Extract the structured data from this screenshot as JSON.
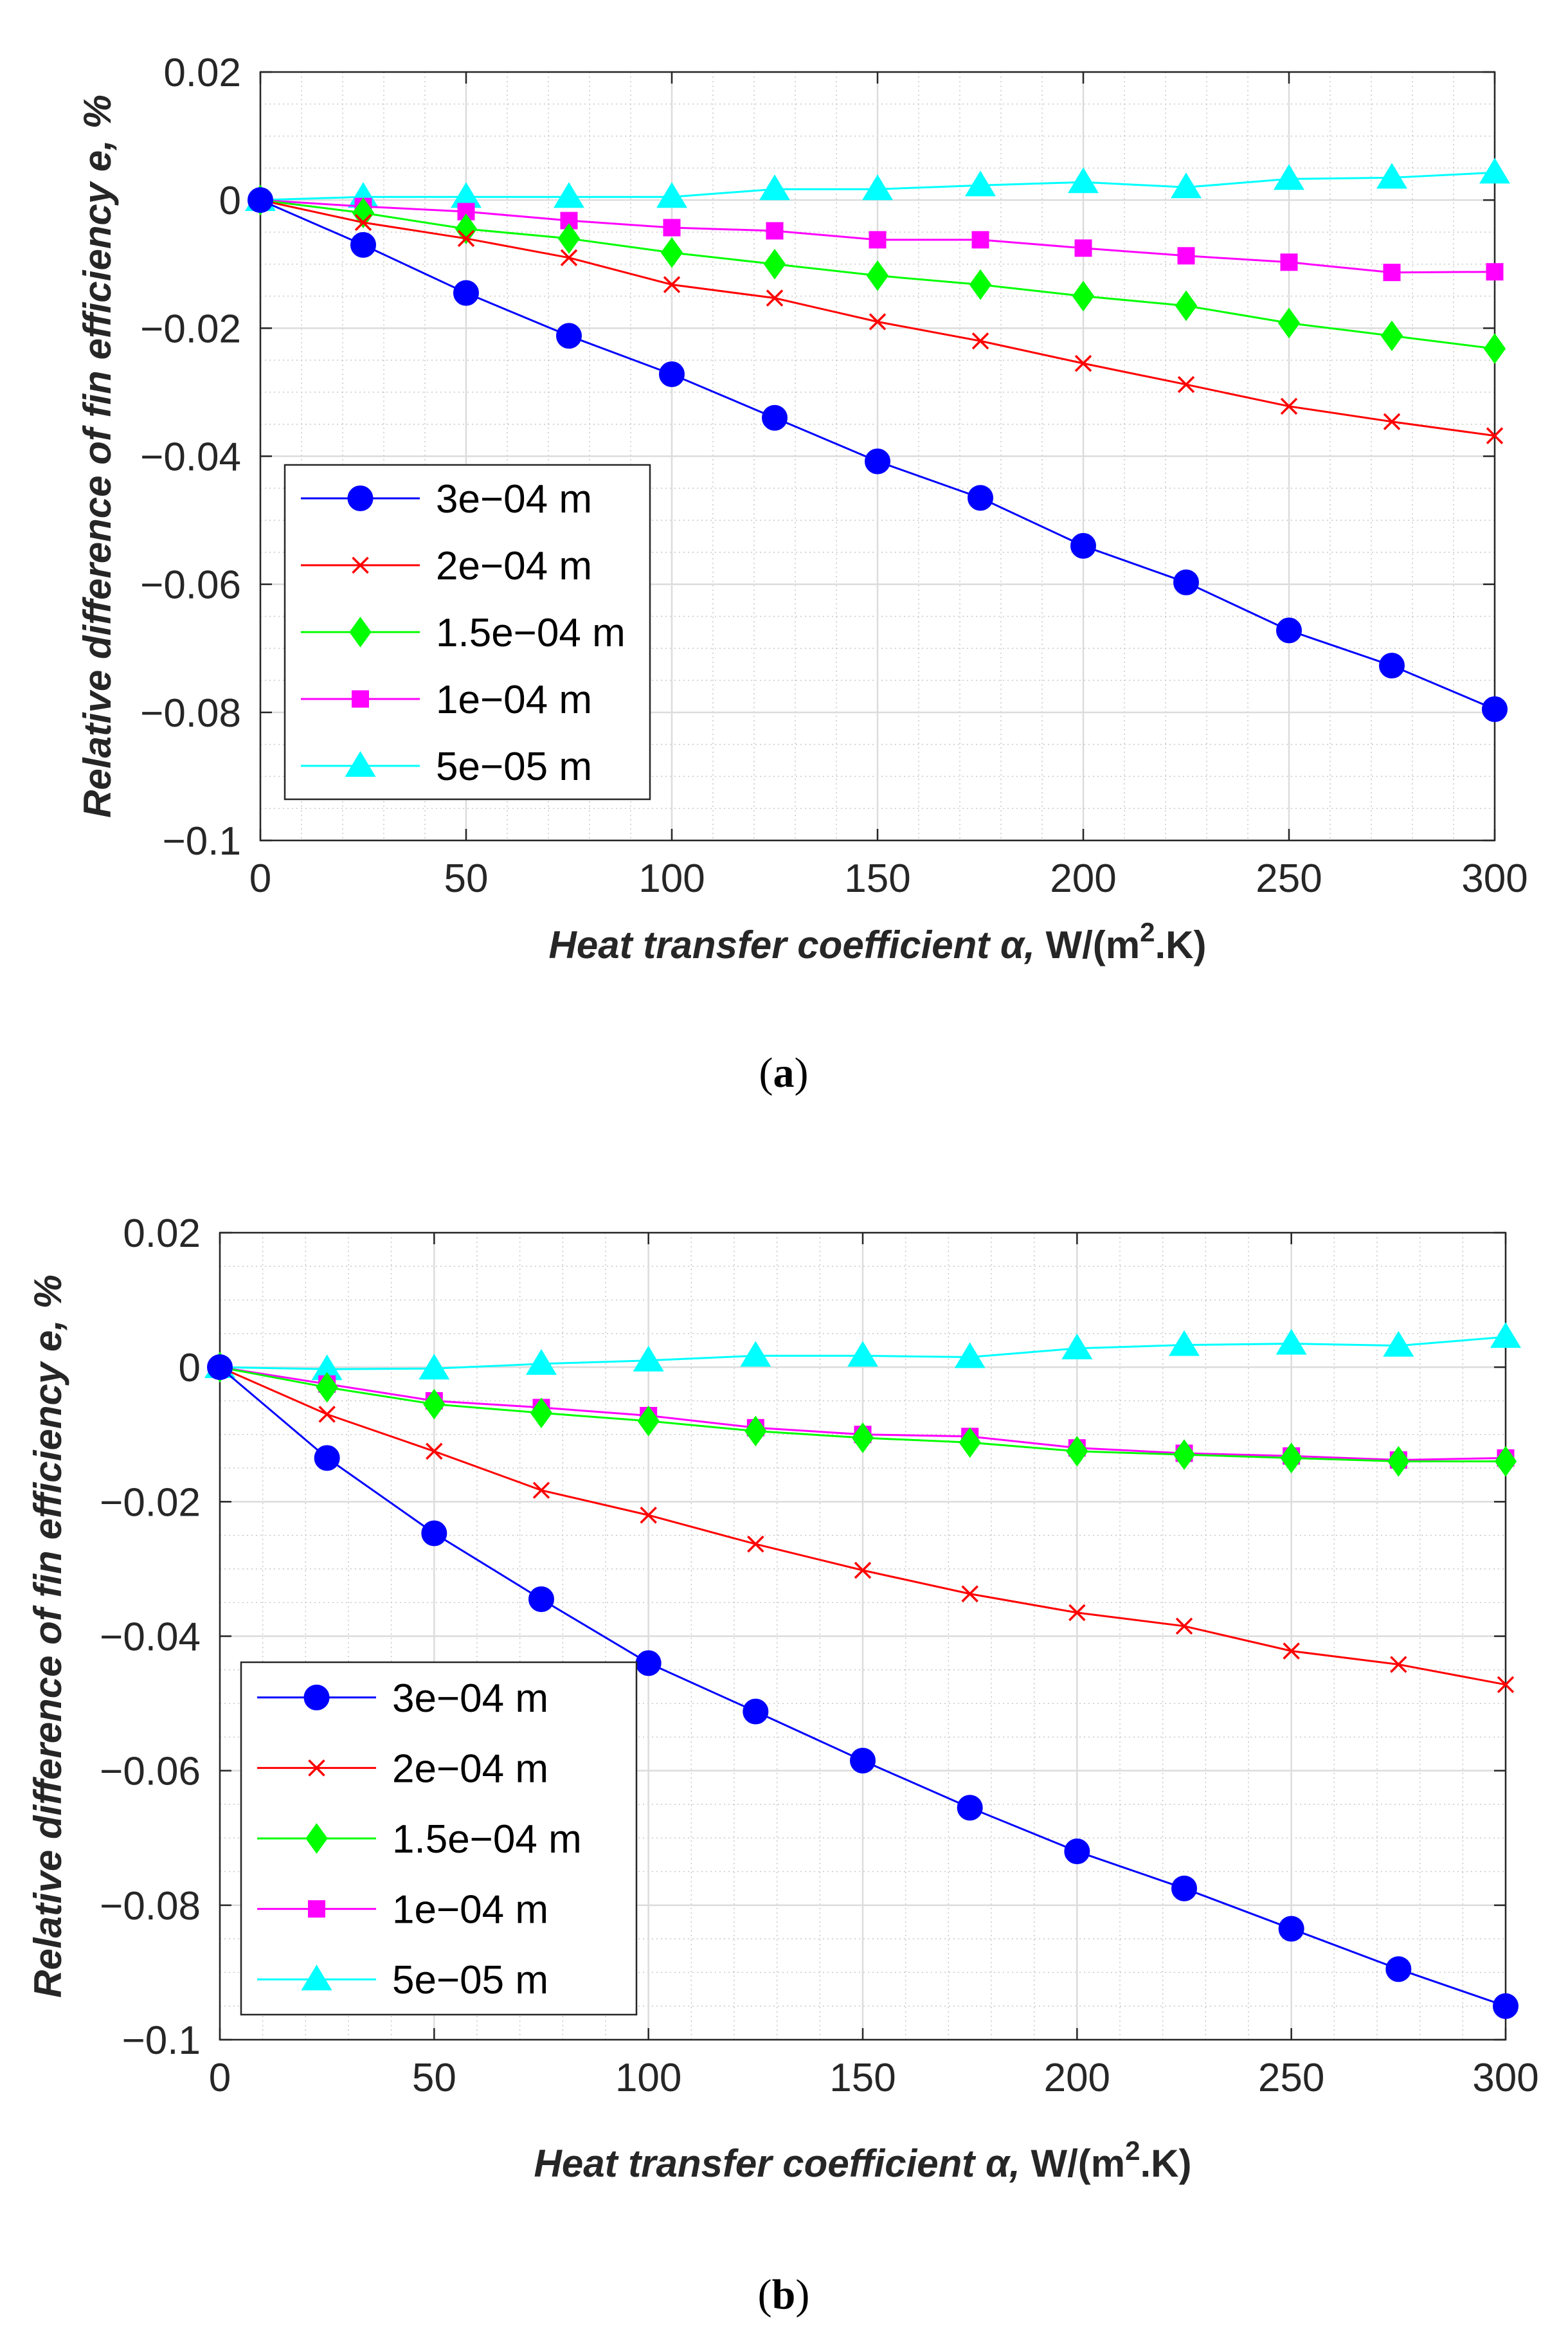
{
  "chart_data": [
    {
      "type": "line",
      "panel_label": "a",
      "xlabel": "Heat transfer coefficient α, W/(m2.K)",
      "xlabel_parts": {
        "main": "Heat transfer coefficient α, ",
        "unit_pre": "W/(m",
        "unit_sup": "2",
        "unit_post": ".K)"
      },
      "ylabel": "Relative difference of fin efficiency e, %",
      "xlim": [
        0,
        300
      ],
      "ylim": [
        -0.1,
        0.02
      ],
      "xticks": [
        0,
        50,
        100,
        150,
        200,
        250,
        300
      ],
      "yticks": [
        0.02,
        0,
        -0.02,
        -0.04,
        -0.06,
        -0.08,
        -0.1
      ],
      "ytick_labels": [
        "0.02",
        "0",
        "−0.02",
        "−0.04",
        "−0.06",
        "−0.08",
        "−0.1"
      ],
      "grid": true,
      "legend_position": "lower-left",
      "x": [
        0,
        25,
        50,
        75,
        100,
        125,
        150,
        175,
        200,
        225,
        250,
        275,
        300
      ],
      "series": [
        {
          "name": "3e−04 m",
          "color": "#0000ff",
          "marker": "circle",
          "values": [
            0,
            -0.007,
            -0.0145,
            -0.0212,
            -0.0272,
            -0.034,
            -0.0408,
            -0.0465,
            -0.054,
            -0.0597,
            -0.0672,
            -0.0727,
            -0.0795
          ]
        },
        {
          "name": "2e−04 m",
          "color": "#ff0000",
          "marker": "x",
          "values": [
            0,
            -0.0035,
            -0.006,
            -0.009,
            -0.0132,
            -0.0153,
            -0.019,
            -0.022,
            -0.0255,
            -0.0288,
            -0.0322,
            -0.0346,
            -0.0368
          ]
        },
        {
          "name": "1.5e−04 m",
          "color": "#00ff00",
          "marker": "diamond",
          "values": [
            0,
            -0.002,
            -0.0045,
            -0.006,
            -0.0082,
            -0.01,
            -0.0118,
            -0.0132,
            -0.015,
            -0.0165,
            -0.0192,
            -0.0212,
            -0.0232
          ]
        },
        {
          "name": "1e−04 m",
          "color": "#ff00ff",
          "marker": "square",
          "values": [
            0,
            -0.001,
            -0.0018,
            -0.0032,
            -0.0043,
            -0.0048,
            -0.0062,
            -0.0062,
            -0.0075,
            -0.0087,
            -0.0097,
            -0.0113,
            -0.0112
          ]
        },
        {
          "name": "5e−05 m",
          "color": "#00ffff",
          "marker": "triangle",
          "values": [
            0,
            0.0005,
            0.0005,
            0.0005,
            0.0005,
            0.0017,
            0.0017,
            0.0023,
            0.0028,
            0.002,
            0.0033,
            0.0035,
            0.0043
          ]
        }
      ]
    },
    {
      "type": "line",
      "panel_label": "b",
      "xlabel": "Heat transfer coefficient α, W/(m2.K)",
      "xlabel_parts": {
        "main": "Heat transfer coefficient α, ",
        "unit_pre": "W/(m",
        "unit_sup": "2",
        "unit_post": ".K)"
      },
      "ylabel": "Relative difference of fin efficiency e, %",
      "xlim": [
        0,
        300
      ],
      "ylim": [
        -0.1,
        0.02
      ],
      "xticks": [
        0,
        50,
        100,
        150,
        200,
        250,
        300
      ],
      "yticks": [
        0.02,
        0,
        -0.02,
        -0.04,
        -0.06,
        -0.08,
        -0.1
      ],
      "ytick_labels": [
        "0.02",
        "0",
        "−0.02",
        "−0.04",
        "−0.06",
        "−0.08",
        "−0.1"
      ],
      "grid": true,
      "legend_position": "lower-left",
      "x": [
        0,
        25,
        50,
        75,
        100,
        125,
        150,
        175,
        200,
        225,
        250,
        275,
        300
      ],
      "series": [
        {
          "name": "3e−04 m",
          "color": "#0000ff",
          "marker": "circle",
          "values": [
            0,
            -0.0135,
            -0.0247,
            -0.0345,
            -0.044,
            -0.0512,
            -0.0585,
            -0.0655,
            -0.072,
            -0.0775,
            -0.0835,
            -0.0895,
            -0.095
          ]
        },
        {
          "name": "2e−04 m",
          "color": "#ff0000",
          "marker": "x",
          "values": [
            0,
            -0.007,
            -0.0125,
            -0.0183,
            -0.022,
            -0.0263,
            -0.0302,
            -0.0337,
            -0.0365,
            -0.0385,
            -0.0422,
            -0.0442,
            -0.0472
          ]
        },
        {
          "name": "1.5e−04 m",
          "color": "#00ff00",
          "marker": "diamond",
          "values": [
            0,
            -0.003,
            -0.0055,
            -0.0068,
            -0.008,
            -0.0095,
            -0.0105,
            -0.0112,
            -0.0125,
            -0.013,
            -0.0135,
            -0.014,
            -0.014
          ]
        },
        {
          "name": "1e−04 m",
          "color": "#ff00ff",
          "marker": "square",
          "values": [
            0,
            -0.0025,
            -0.005,
            -0.006,
            -0.0072,
            -0.009,
            -0.01,
            -0.0103,
            -0.012,
            -0.0128,
            -0.0132,
            -0.0138,
            -0.0135
          ]
        },
        {
          "name": "5e−05 m",
          "color": "#00ffff",
          "marker": "triangle",
          "values": [
            0,
            -0.0003,
            -0.0002,
            0.0005,
            0.001,
            0.0017,
            0.0017,
            0.0015,
            0.0028,
            0.0033,
            0.0035,
            0.0032,
            0.0045
          ]
        }
      ]
    }
  ]
}
